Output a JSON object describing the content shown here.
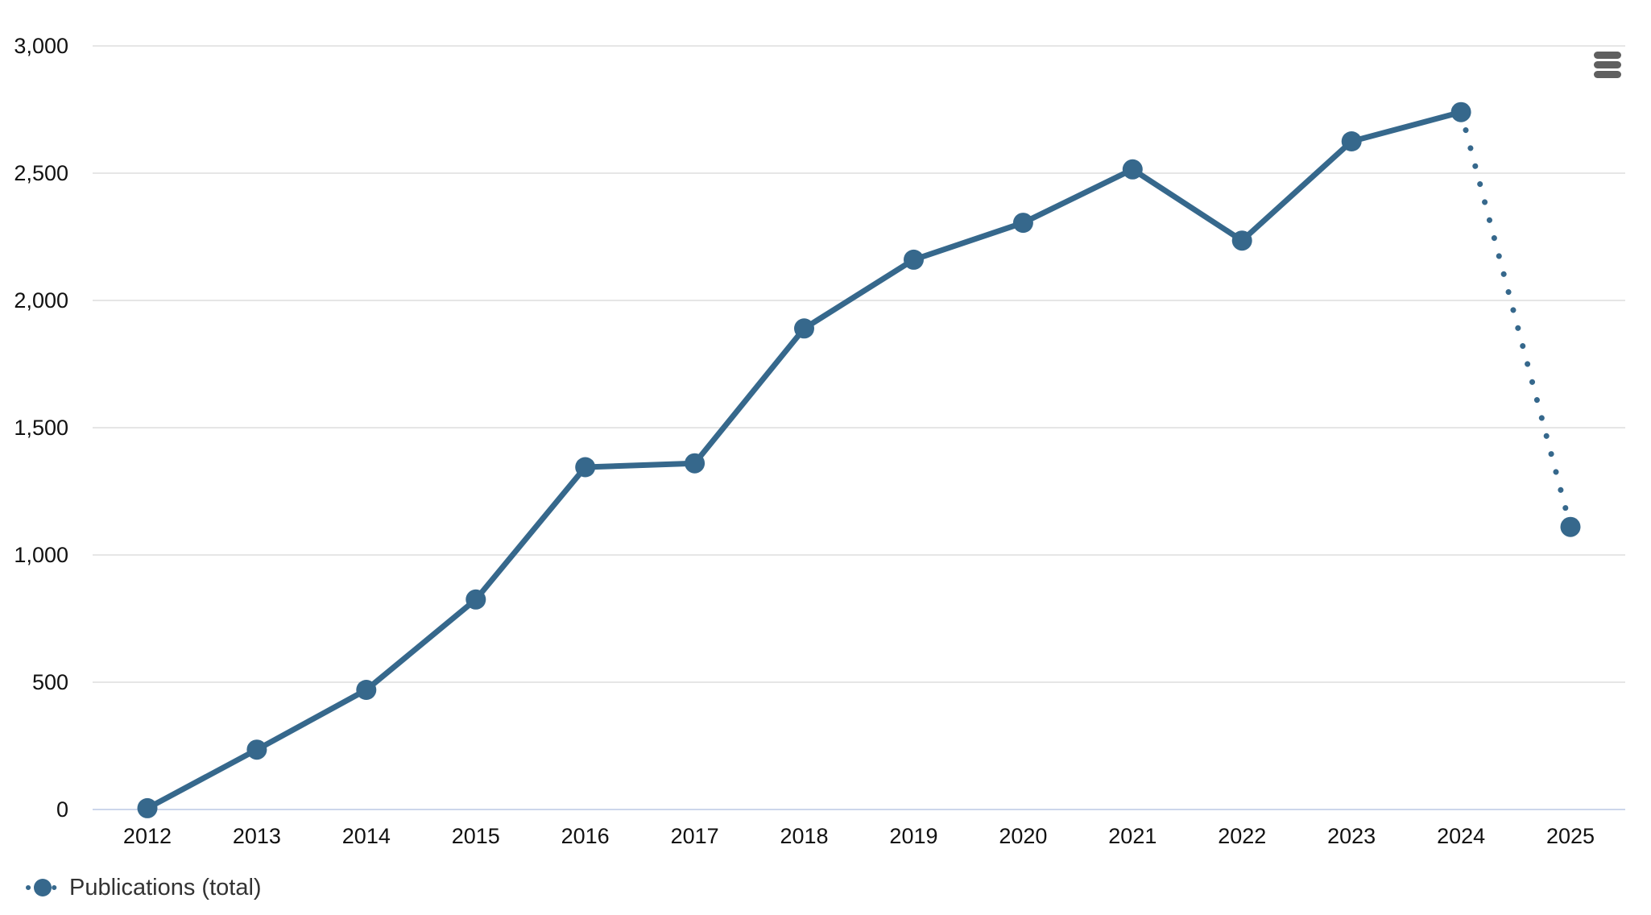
{
  "chart_data": {
    "type": "line",
    "title": "",
    "xlabel": "",
    "ylabel": "",
    "categories": [
      "2012",
      "2013",
      "2014",
      "2015",
      "2016",
      "2017",
      "2018",
      "2019",
      "2020",
      "2021",
      "2022",
      "2023",
      "2024",
      "2025"
    ],
    "series": [
      {
        "name": "Publications (total)",
        "values": [
          5,
          235,
          470,
          825,
          1345,
          1360,
          1890,
          2160,
          2305,
          2515,
          2235,
          2625,
          2740,
          1110
        ]
      }
    ],
    "ylim": [
      0,
      3000
    ],
    "ytick_interval": 500,
    "ytick_labels": [
      "0",
      "500",
      "1,000",
      "1,500",
      "2,000",
      "2,500",
      "3,000"
    ],
    "grid": "horizontal",
    "legend_position": "bottom-left",
    "dashed_segment": {
      "from": "2024",
      "to": "2025",
      "style": "dotted"
    }
  },
  "legend": {
    "label": "Publications (total)"
  },
  "menu": {
    "icon": "hamburger-icon"
  },
  "colors": {
    "series": "#36688C",
    "grid_line": "#e6e6e6",
    "axis_line": "#ccd6eb",
    "axis_label": "#111111",
    "legend_text": "#333333",
    "menu_icon": "#5f5f5f",
    "background": "#ffffff"
  }
}
